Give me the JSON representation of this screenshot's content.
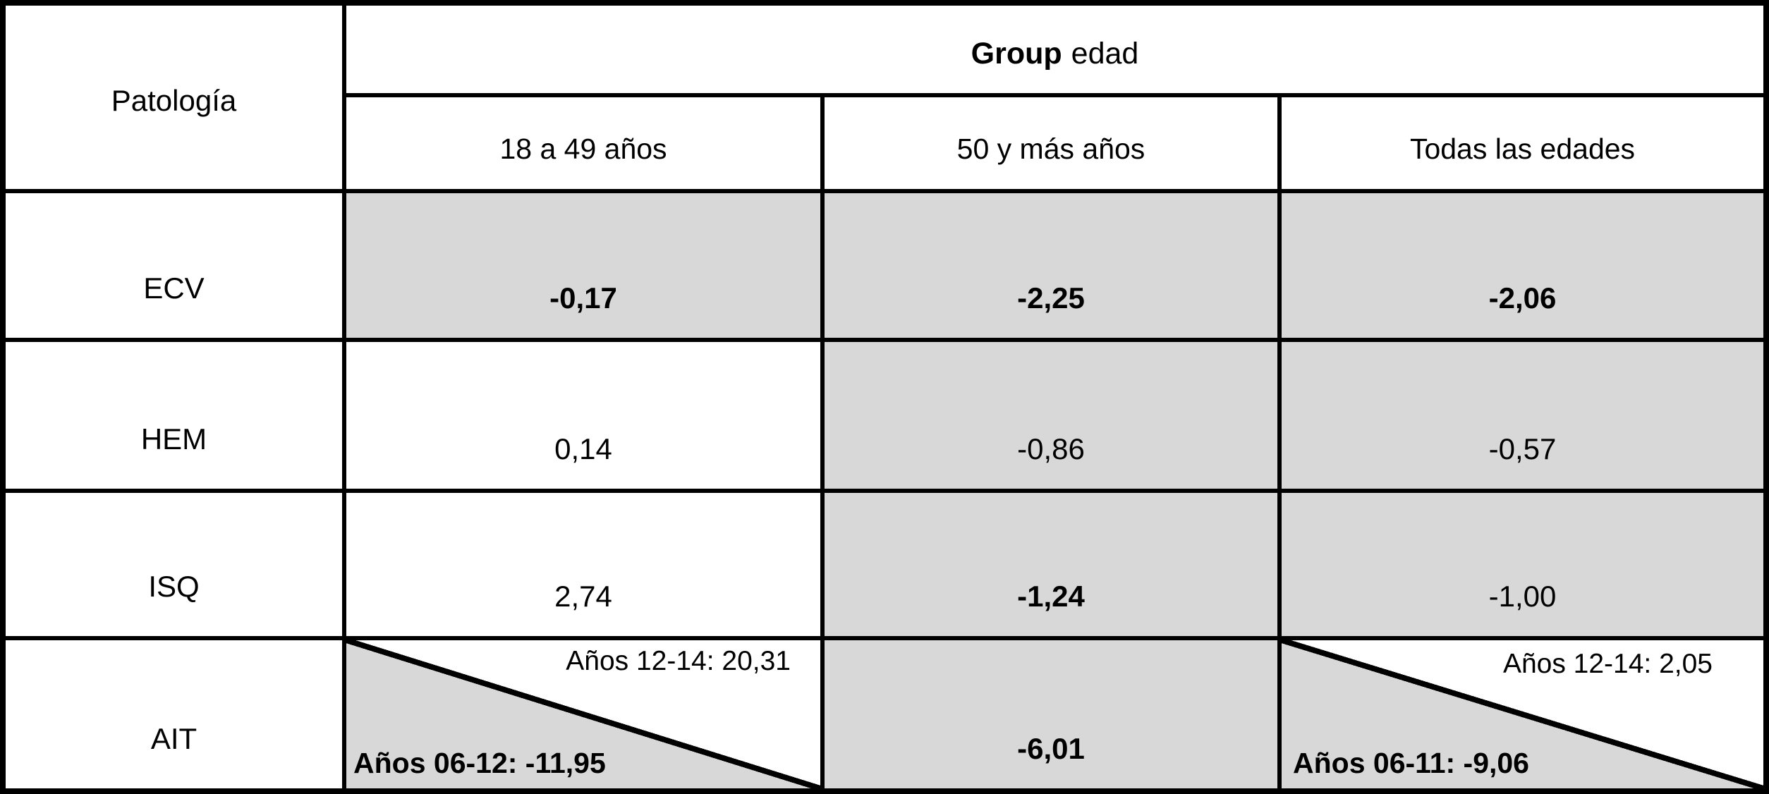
{
  "colors": {
    "cell_gray": "#d8d8d8",
    "grid_line": "#000000",
    "background": "#ffffff",
    "text": "#000000"
  },
  "header": {
    "pathology_label": "Patología",
    "group_label_bold": "Group",
    "group_label_rest": "edad",
    "age_columns": [
      "18 a 49 años",
      "50 y más años",
      "Todas las edades"
    ]
  },
  "rows": [
    {
      "label": "ECV",
      "cells": [
        {
          "text": "-0,17"
        },
        {
          "text": "-2,25"
        },
        {
          "text": "-2,06"
        }
      ]
    },
    {
      "label": "HEM",
      "cells": [
        {
          "text": "0,14"
        },
        {
          "text": "-0,86"
        },
        {
          "text": "-0,57"
        }
      ]
    },
    {
      "label": "ISQ",
      "cells": [
        {
          "text": "2,74"
        },
        {
          "text": "-1,24"
        },
        {
          "text": "-1,00"
        }
      ]
    },
    {
      "label": "AIT",
      "cells": [
        {
          "top": "Años 12-14: 20,31",
          "bottom": "Años 06-12: -11,95"
        },
        {
          "text": "-6,01"
        },
        {
          "top": "Años 12-14: 2,05",
          "bottom": "Años 06-11: -9,06"
        }
      ]
    }
  ],
  "chart_data": {
    "type": "table",
    "title": "Group edad",
    "columns": [
      "Patología",
      "18 a 49 años",
      "50 y más años",
      "Todas las edades"
    ],
    "rows": [
      [
        "ECV",
        "-0,17",
        "-2,25",
        "-2,06"
      ],
      [
        "HEM",
        "0,14",
        "-0,86",
        "-0,57"
      ],
      [
        "ISQ",
        "2,74",
        "-1,24",
        "-1,00"
      ],
      [
        "AIT",
        "Años 12-14: 20,31 | Años 06-12: -11,95",
        "-6,01",
        "Años 12-14: 2,05 | Años 06-11: -9,06"
      ]
    ]
  }
}
